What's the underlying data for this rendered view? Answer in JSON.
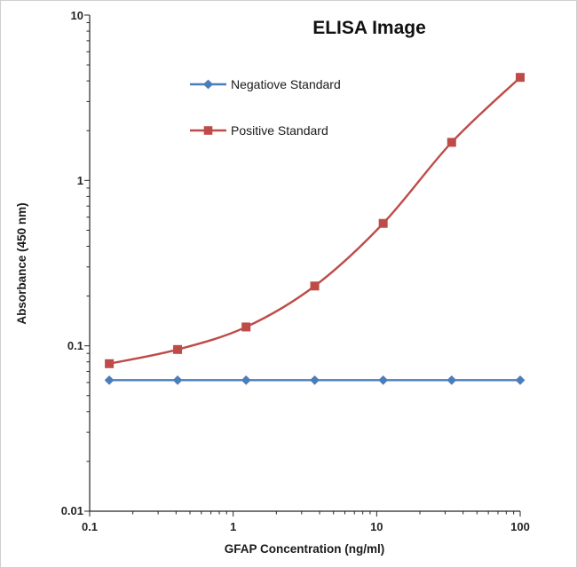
{
  "page": {
    "background": "#ffffff",
    "border_color": "#cfcfcf"
  },
  "chart_data": {
    "type": "line",
    "title": "ELISA Image",
    "xlabel": "GFAP Concentration (ng/ml)",
    "ylabel": "Absorbance (450 nm)",
    "x_scale": "log",
    "y_scale": "log",
    "xlim": [
      0.1,
      100
    ],
    "ylim": [
      0.01,
      10
    ],
    "grid": false,
    "legend_position": "upper-left-inside",
    "x_tick_labels": [
      "0.1",
      "1",
      "10",
      "100"
    ],
    "y_tick_labels": [
      "0.01",
      "0.1",
      "1",
      "10"
    ],
    "x": [
      0.137,
      0.41,
      1.23,
      3.7,
      11.1,
      33.3,
      100
    ],
    "series": [
      {
        "name": "Negatiove Standard",
        "color": "#4a7ebb",
        "marker": "diamond",
        "smooth": false,
        "values": [
          0.062,
          0.062,
          0.062,
          0.062,
          0.062,
          0.062,
          0.062
        ]
      },
      {
        "name": "Positive Standard",
        "color": "#be4b48",
        "marker": "square",
        "smooth": true,
        "values": [
          0.078,
          0.095,
          0.13,
          0.23,
          0.55,
          1.7,
          4.2
        ]
      }
    ]
  }
}
